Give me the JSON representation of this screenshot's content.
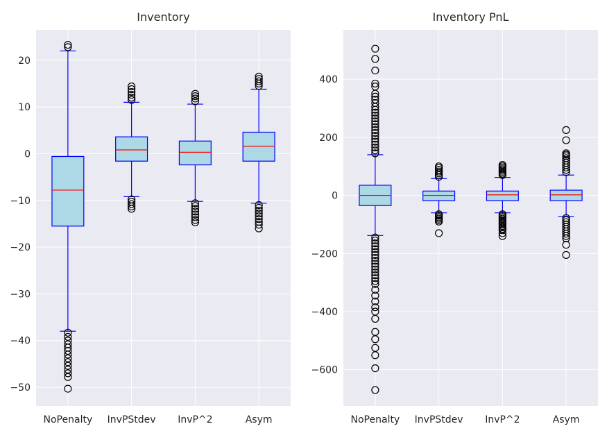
{
  "chart_data": [
    {
      "type": "box",
      "title": "Inventory",
      "categories": [
        "NoPenalty",
        "InvPStdev",
        "InvP^2",
        "Asym"
      ],
      "ylim": [
        -54,
        26.5
      ],
      "yticks": [
        20,
        10,
        0,
        -10,
        -20,
        -30,
        -40,
        -50
      ],
      "ytick_labels": [
        "20",
        "10",
        "0",
        "−10",
        "−20",
        "−30",
        "−40",
        "−50"
      ],
      "grid": true,
      "boxes": [
        {
          "category": "NoPenalty",
          "whislo": -38.0,
          "q1": -15.5,
          "median": -7.8,
          "q3": -0.6,
          "whishi": 22.0,
          "fliers": [
            23.3,
            22.8,
            -38.3,
            -39.2,
            -40.0,
            -40.8,
            -41.5,
            -42.2,
            -43.0,
            -43.8,
            -44.6,
            -45.4,
            -46.2,
            -47.0,
            -47.8,
            -50.3
          ]
        },
        {
          "category": "InvPStdev",
          "whislo": -9.2,
          "q1": -1.6,
          "median": 0.8,
          "q3": 3.6,
          "whishi": 11.0,
          "fliers": [
            14.4,
            13.8,
            13.2,
            12.6,
            12.0,
            11.5,
            -9.8,
            -10.3,
            -10.8,
            -11.3,
            -11.8
          ]
        },
        {
          "category": "InvP^2",
          "whislo": -10.2,
          "q1": -2.4,
          "median": 0.3,
          "q3": 2.7,
          "whishi": 10.6,
          "fliers": [
            12.8,
            12.3,
            11.8,
            11.2,
            -10.6,
            -11.2,
            -11.8,
            -12.4,
            -13.0,
            -13.6,
            -14.2,
            -14.7
          ]
        },
        {
          "category": "Asym",
          "whislo": -10.6,
          "q1": -1.6,
          "median": 1.6,
          "q3": 4.6,
          "whishi": 13.8,
          "fliers": [
            16.5,
            16.0,
            15.5,
            15.0,
            14.5,
            -11.0,
            -11.6,
            -12.2,
            -12.8,
            -13.4,
            -14.0,
            -14.6,
            -15.2,
            -16.0
          ]
        }
      ]
    },
    {
      "type": "box",
      "title": "Inventory PnL",
      "categories": [
        "NoPenalty",
        "InvPStdev",
        "InvP^2",
        "Asym"
      ],
      "ylim": [
        -725,
        570
      ],
      "yticks": [
        400,
        200,
        0,
        -200,
        -400,
        -600
      ],
      "ytick_labels": [
        "400",
        "200",
        "0",
        "−200",
        "−400",
        "−600"
      ],
      "grid": true,
      "boxes": [
        {
          "category": "NoPenalty",
          "whislo": -138,
          "q1": -35,
          "median": 0,
          "q3": 35,
          "whishi": 140,
          "fliers": [
            505,
            470,
            430,
            385,
            375,
            350,
            340,
            330,
            318,
            305,
            295,
            285,
            275,
            265,
            255,
            245,
            235,
            225,
            215,
            205,
            195,
            185,
            175,
            165,
            155,
            145,
            -145,
            -155,
            -165,
            -175,
            -185,
            -195,
            -205,
            -215,
            -225,
            -235,
            -245,
            -255,
            -265,
            -275,
            -285,
            -295,
            -305,
            -325,
            -345,
            -365,
            -385,
            -400,
            -425,
            -470,
            -495,
            -525,
            -550,
            -595,
            -670
          ]
        },
        {
          "category": "InvPStdev",
          "whislo": -60,
          "q1": -18,
          "median": 0,
          "q3": 15,
          "whishi": 58,
          "fliers": [
            100,
            95,
            88,
            82,
            76,
            70,
            64,
            -65,
            -70,
            -75,
            -80,
            -85,
            -90,
            -130
          ]
        },
        {
          "category": "InvP^2",
          "whislo": -60,
          "q1": -18,
          "median": 2,
          "q3": 15,
          "whishi": 62,
          "fliers": [
            105,
            100,
            95,
            90,
            85,
            80,
            75,
            70,
            -65,
            -70,
            -75,
            -80,
            -85,
            -90,
            -95,
            -100,
            -105,
            -110,
            -115,
            -120,
            -130,
            -140
          ]
        },
        {
          "category": "Asym",
          "whislo": -72,
          "q1": -18,
          "median": 2,
          "q3": 18,
          "whishi": 70,
          "fliers": [
            225,
            190,
            145,
            140,
            135,
            128,
            120,
            112,
            104,
            96,
            88,
            80,
            -78,
            -85,
            -92,
            -100,
            -108,
            -116,
            -124,
            -132,
            -140,
            -148,
            -170,
            -205
          ]
        }
      ]
    }
  ]
}
